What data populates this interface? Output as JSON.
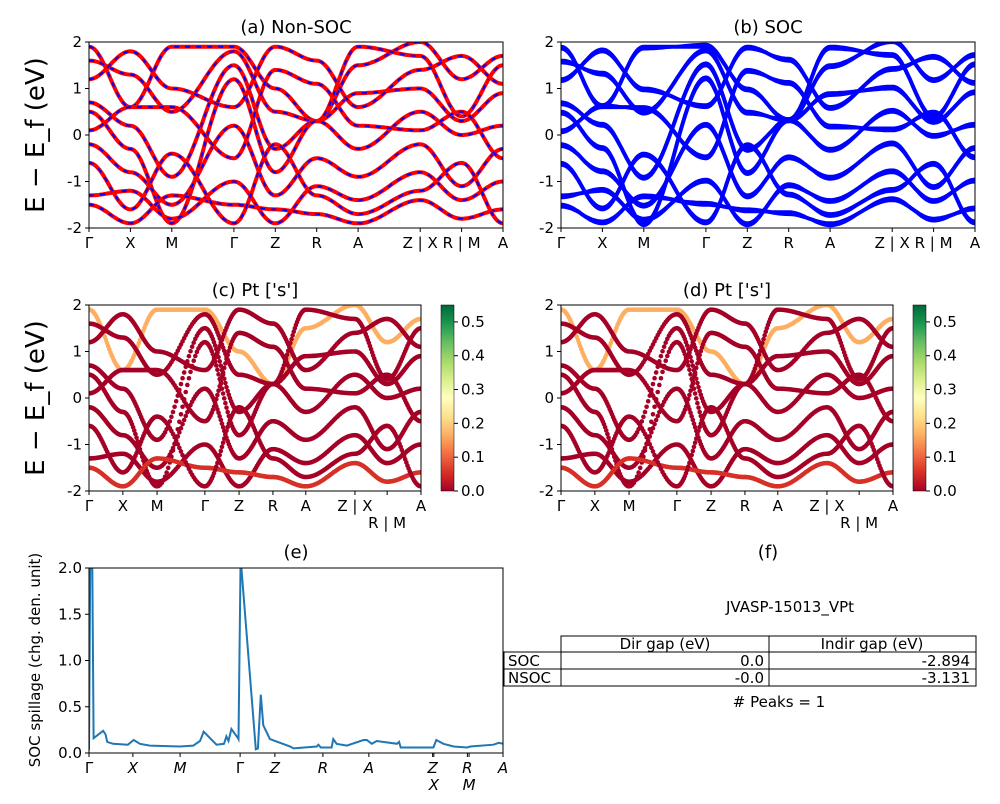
{
  "figure_title": "JVASP-15013_VPt",
  "colors": {
    "nonsoc_line": "#ff0000",
    "nonsoc_dash": "#0000ff",
    "soc_line": "#0000ff",
    "spillage_line": "#1f77b4",
    "projection_low": "#a50026",
    "projection_high": "#006837"
  },
  "chart_data": [
    {
      "id": "a",
      "type": "line",
      "title": "(a) Non-SOC",
      "ylabel": "E − E_f (eV)",
      "ylim": [
        -2,
        2
      ],
      "yticks": [
        -2,
        -1,
        0,
        1,
        2
      ],
      "xticks": [
        {
          "k": 0.0,
          "label": "Γ"
        },
        {
          "k": 0.1,
          "label": "X"
        },
        {
          "k": 0.2,
          "label": "M"
        },
        {
          "k": 0.35,
          "label": "Γ"
        },
        {
          "k": 0.45,
          "label": "Z"
        },
        {
          "k": 0.55,
          "label": "R"
        },
        {
          "k": 0.65,
          "label": "A"
        },
        {
          "k": 0.8,
          "label": "Z | X"
        },
        {
          "k": 0.9,
          "label": "R | M"
        },
        {
          "k": 1.0,
          "label": "A"
        }
      ]
    },
    {
      "id": "b",
      "type": "line",
      "title": "(b) SOC",
      "ylim": [
        -2,
        2
      ],
      "yticks": [
        -2,
        -1,
        0,
        1,
        2
      ]
    },
    {
      "id": "c",
      "type": "scatter",
      "title": "(c)  Pt ['s']",
      "ylabel": "E − E_f (eV)",
      "ylim": [
        -2,
        2
      ],
      "yticks": [
        -2,
        -1,
        0,
        1,
        2
      ],
      "colorbar": {
        "range": [
          0,
          0.55
        ],
        "ticks": [
          "0.0",
          "0.1",
          "0.2",
          "0.3",
          "0.4",
          "0.5"
        ]
      },
      "xticks": [
        {
          "k": 0.0,
          "label": "Γ"
        },
        {
          "k": 0.102,
          "label": "X"
        },
        {
          "k": 0.205,
          "label": "M"
        },
        {
          "k": 0.349,
          "label": "Γ"
        },
        {
          "k": 0.452,
          "label": "Z"
        },
        {
          "k": 0.554,
          "label": "R"
        },
        {
          "k": 0.653,
          "label": "A"
        },
        {
          "k": 0.801,
          "label": "Z | X"
        },
        {
          "k": 0.898,
          "label": "R | M"
        },
        {
          "k": 1.0,
          "label": "A"
        }
      ]
    },
    {
      "id": "d",
      "type": "scatter",
      "title": "(d) Pt ['s']",
      "ylim": [
        -2,
        2
      ],
      "yticks": [
        -2,
        -1,
        0,
        1,
        2
      ],
      "colorbar": {
        "range": [
          0,
          0.55
        ],
        "ticks": [
          "0.0",
          "0.1",
          "0.2",
          "0.3",
          "0.4",
          "0.5"
        ]
      }
    },
    {
      "id": "e",
      "type": "line",
      "title": "(e)",
      "ylabel": "SOC spillage (chg. den. unit)",
      "ylim": [
        0,
        2.0
      ],
      "yticks": [
        "0.0",
        "0.5",
        "1.0",
        "1.5",
        "2.0"
      ],
      "xticks": [
        {
          "k": 0.0,
          "label": "Γ"
        },
        {
          "k": 0.106,
          "label": "X"
        },
        {
          "k": 0.22,
          "label": "M"
        },
        {
          "k": 0.365,
          "label": "Γ"
        },
        {
          "k": 0.449,
          "label": "Z"
        },
        {
          "k": 0.565,
          "label": "R"
        },
        {
          "k": 0.676,
          "label": "A"
        },
        {
          "k": 0.83,
          "label": "Z"
        },
        {
          "k": 0.833,
          "label": "X"
        },
        {
          "k": 0.914,
          "label": "R"
        },
        {
          "k": 0.918,
          "label": "M"
        },
        {
          "k": 1.0,
          "label": "A"
        }
      ],
      "x": [
        0,
        0.003,
        0.008,
        0.011,
        0.034,
        0.04,
        0.044,
        0.058,
        0.094,
        0.108,
        0.123,
        0.147,
        0.219,
        0.252,
        0.268,
        0.277,
        0.308,
        0.326,
        0.332,
        0.337,
        0.344,
        0.36,
        0.361,
        0.366,
        0.368,
        0.403,
        0.408,
        0.415,
        0.421,
        0.437,
        0.486,
        0.494,
        0.55,
        0.554,
        0.56,
        0.586,
        0.59,
        0.598,
        0.623,
        0.663,
        0.671,
        0.683,
        0.695,
        0.744,
        0.749,
        0.753,
        0.832,
        0.839,
        0.856,
        0.881,
        0.913,
        0.921,
        0.977,
        0.99,
        1.0
      ],
      "y": [
        0.03,
        2.0,
        2.0,
        0.16,
        0.24,
        0.2,
        0.12,
        0.1,
        0.09,
        0.14,
        0.1,
        0.08,
        0.07,
        0.08,
        0.13,
        0.23,
        0.09,
        0.1,
        0.18,
        0.13,
        0.26,
        0.16,
        0.15,
        2.0,
        2.0,
        0.04,
        0.05,
        0.63,
        0.3,
        0.15,
        0.07,
        0.05,
        0.07,
        0.09,
        0.06,
        0.06,
        0.15,
        0.1,
        0.08,
        0.14,
        0.14,
        0.1,
        0.13,
        0.1,
        0.12,
        0.06,
        0.06,
        0.14,
        0.1,
        0.07,
        0.06,
        0.07,
        0.09,
        0.11,
        0.1
      ]
    }
  ],
  "bands": [
    {
      "E": [
        1.9,
        0.6,
        1.9,
        1.9,
        1.0,
        0.3,
        1.5,
        2.0,
        1.2,
        1.7
      ],
      "w": 0.18
    },
    {
      "E": [
        1.6,
        1.3,
        0.5,
        1.8,
        0.5,
        0.3,
        1.9,
        1.7,
        0.4,
        1.5
      ],
      "w": 0.0
    },
    {
      "E": [
        0.7,
        0.2,
        -0.9,
        1.5,
        -0.3,
        0.3,
        0.9,
        1.0,
        0.3,
        0.9
      ],
      "w": 0.0
    },
    {
      "E": [
        0.5,
        -0.3,
        -1.9,
        1.2,
        -0.8,
        0.3,
        -0.3,
        0.5,
        0.0,
        0.2
      ],
      "w": 0.02
    },
    {
      "E": [
        -0.2,
        -0.8,
        -1.5,
        0.2,
        -1.3,
        -0.5,
        -0.9,
        -0.2,
        -1.1,
        -0.3
      ],
      "w": 0.0
    },
    {
      "E": [
        -1.3,
        -1.2,
        -1.8,
        -1.0,
        -1.9,
        -1.1,
        -1.4,
        -0.8,
        -1.4,
        -1.0
      ],
      "w": 0.0
    },
    {
      "E": [
        -1.5,
        -1.9,
        -1.3,
        -1.5,
        -1.6,
        -1.7,
        -1.9,
        -1.4,
        -1.8,
        -1.6
      ],
      "w": 0.05
    },
    {
      "E": [
        0.1,
        0.6,
        0.6,
        -0.5,
        1.4,
        1.1,
        0.2,
        0.1,
        0.5,
        -0.5
      ],
      "w": 0.0
    },
    {
      "E": [
        1.2,
        1.8,
        1.0,
        0.6,
        1.9,
        1.6,
        0.6,
        1.4,
        1.7,
        1.1
      ],
      "w": 0.0
    },
    {
      "E": [
        -0.6,
        -1.6,
        -0.4,
        -1.9,
        -0.2,
        -1.3,
        -1.7,
        -1.2,
        -0.6,
        -1.9
      ],
      "w": 0.0
    }
  ],
  "table": {
    "headers": [
      "",
      "Dir gap (eV)",
      "Indir gap (eV)"
    ],
    "rows": [
      [
        "SOC",
        "0.0",
        "-2.894"
      ],
      [
        "NSOC",
        "-0.0",
        "-3.131"
      ]
    ],
    "panel_title": "(f)",
    "peaks": "# Peaks = 1"
  }
}
